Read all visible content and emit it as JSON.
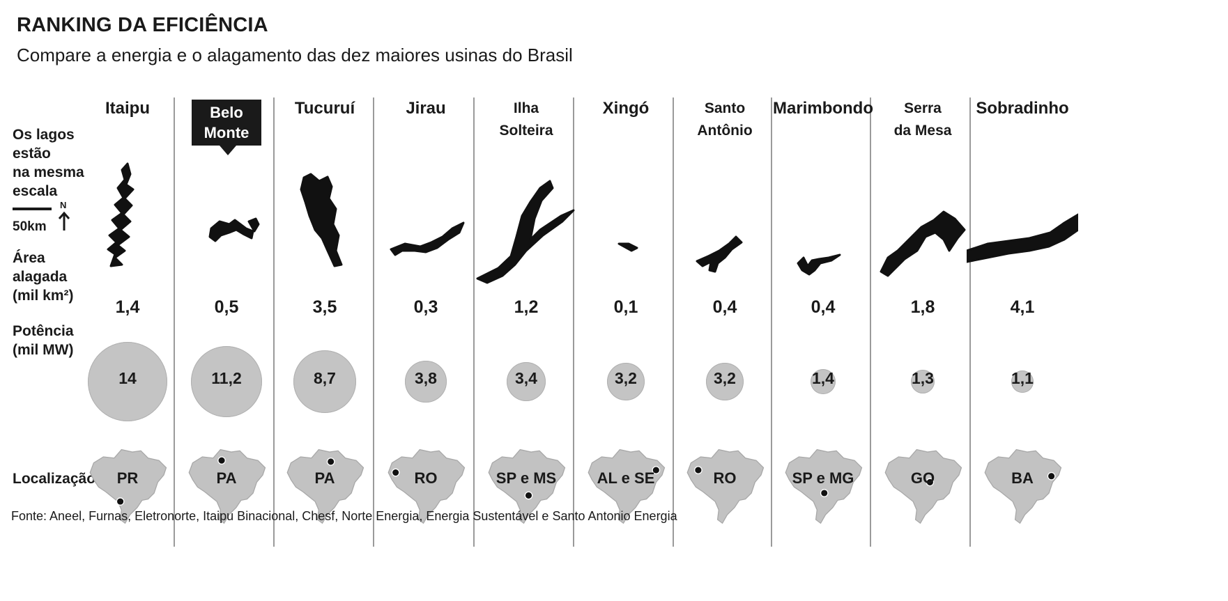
{
  "title": "RANKING DA EFICIÊNCIA",
  "subtitle": "Compare a energia e o alagamento das dez maiores usinas do Brasil",
  "row_labels": {
    "lakes": "Os lagos\nestão\nna mesma\nescala",
    "scale": "50km",
    "north": "N",
    "area": "Área\nalagada\n(mil km²)",
    "power": "Potência\n(mil MW)",
    "location": "Localização"
  },
  "source": "Fonte: Aneel, Furnas, Eletronorte, Itaipu Binacional, Chesf, Norte Energia, Energia Sustentável e Santo Antonio Energia",
  "colors": {
    "bubble": "#c4c4c4",
    "map": "#c2c2c2",
    "lake": "#111111",
    "highlight": "#1a1a1a"
  },
  "chart_data": {
    "type": "table",
    "title": "RANKING DA EFICIÊNCIA",
    "subtitle": "Compare a energia e o alagamento das dez maiores usinas do Brasil",
    "columns": [
      "Área alagada (mil km²)",
      "Potência (mil MW)",
      "Localização"
    ],
    "plants": [
      {
        "name": "Itaipu",
        "area": "1,4",
        "area_value": 1.4,
        "power": "14",
        "power_value": 14,
        "location": "PR",
        "highlighted": false
      },
      {
        "name": "Belo\nMonte",
        "area": "0,5",
        "area_value": 0.5,
        "power": "11,2",
        "power_value": 11.2,
        "location": "PA",
        "highlighted": true
      },
      {
        "name": "Tucuruí",
        "area": "3,5",
        "area_value": 3.5,
        "power": "8,7",
        "power_value": 8.7,
        "location": "PA",
        "highlighted": false
      },
      {
        "name": "Jirau",
        "area": "0,3",
        "area_value": 0.3,
        "power": "3,8",
        "power_value": 3.8,
        "location": "RO",
        "highlighted": false
      },
      {
        "name": "Ilha\nSolteira",
        "area": "1,2",
        "area_value": 1.2,
        "power": "3,4",
        "power_value": 3.4,
        "location": "SP e MS",
        "highlighted": false
      },
      {
        "name": "Xingó",
        "area": "0,1",
        "area_value": 0.1,
        "power": "3,2",
        "power_value": 3.2,
        "location": "AL e SE",
        "highlighted": false
      },
      {
        "name": "Santo\nAntônio",
        "area": "0,4",
        "area_value": 0.4,
        "power": "3,2",
        "power_value": 3.2,
        "location": "RO",
        "highlighted": false
      },
      {
        "name": "Marimbondo",
        "area": "0,4",
        "area_value": 0.4,
        "power": "1,4",
        "power_value": 1.4,
        "location": "SP e MG",
        "highlighted": false
      },
      {
        "name": "Serra\nda Mesa",
        "area": "1,8",
        "area_value": 1.8,
        "power": "1,3",
        "power_value": 1.3,
        "location": "GO",
        "highlighted": false
      },
      {
        "name": "Sobradinho",
        "area": "4,1",
        "area_value": 4.1,
        "power": "1,1",
        "power_value": 1.1,
        "location": "BA",
        "highlighted": false
      }
    ]
  }
}
